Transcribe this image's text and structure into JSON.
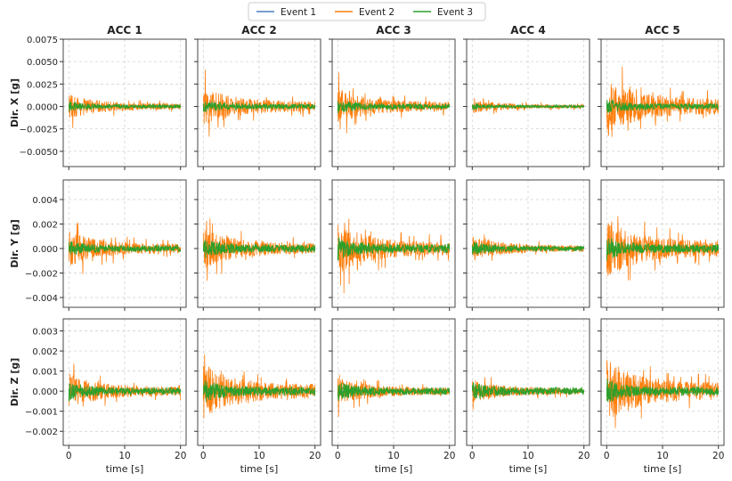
{
  "chart_data": {
    "type": "line",
    "legend": {
      "placement": "top-center",
      "entries": [
        "Event 1",
        "Event 2",
        "Event 3"
      ]
    },
    "series_colors": {
      "Event 1": "#4c7fc0",
      "Event 2": "#ff7f0e",
      "Event 3": "#2ca02c"
    },
    "columns": [
      "ACC 1",
      "ACC 2",
      "ACC 3",
      "ACC 4",
      "ACC 5"
    ],
    "rows": [
      {
        "ylabel": "Dir. X [g]",
        "ylim": [
          -0.0067,
          0.0075
        ],
        "yticks": [
          -0.005,
          -0.0025,
          0,
          0.0025,
          0.005,
          0.0075
        ],
        "yticklabels": [
          "−0.0050",
          "−0.0025",
          "0.0000",
          "0.0025",
          "0.0050",
          "0.0075"
        ]
      },
      {
        "ylabel": "Dir. Y [g]",
        "ylim": [
          -0.0048,
          0.0056
        ],
        "yticks": [
          -0.004,
          -0.002,
          0,
          0.002,
          0.004
        ],
        "yticklabels": [
          "−0.004",
          "−0.002",
          "0.000",
          "0.002",
          "0.004"
        ]
      },
      {
        "ylabel": "Dir. Z [g]",
        "ylim": [
          -0.0027,
          0.0036
        ],
        "yticks": [
          -0.002,
          -0.001,
          0,
          0.001,
          0.002,
          0.003
        ],
        "yticklabels": [
          "−0.002",
          "−0.001",
          "0.000",
          "0.001",
          "0.002",
          "0.003"
        ]
      }
    ],
    "xlabel": "time [s]",
    "xlim": [
      -1,
      21
    ],
    "xticks": [
      0,
      10,
      20
    ],
    "xticklabels": [
      "0",
      "10",
      "20"
    ],
    "grid": true,
    "peak_amplitudes": {
      "Event 1": [
        [
          0.0002,
          0.0003,
          0.0003,
          0.0002,
          0.0003
        ],
        [
          0.0002,
          0.0003,
          0.0003,
          0.0002,
          0.0003
        ],
        [
          0.0002,
          0.0002,
          0.0002,
          0.0002,
          0.0002
        ]
      ],
      "Event 2": [
        [
          0.0028,
          0.0045,
          0.004,
          0.0015,
          0.0068
        ],
        [
          0.003,
          0.0034,
          0.0043,
          0.002,
          0.0051
        ],
        [
          0.0018,
          0.0028,
          0.0014,
          0.0012,
          0.0033
        ]
      ],
      "Event 3": [
        [
          0.0006,
          0.0008,
          0.0008,
          0.0004,
          0.0009
        ],
        [
          0.0007,
          0.0009,
          0.001,
          0.0006,
          0.001
        ],
        [
          0.0005,
          0.0006,
          0.0005,
          0.0005,
          0.0006
        ]
      ]
    },
    "duration_s": 20
  }
}
